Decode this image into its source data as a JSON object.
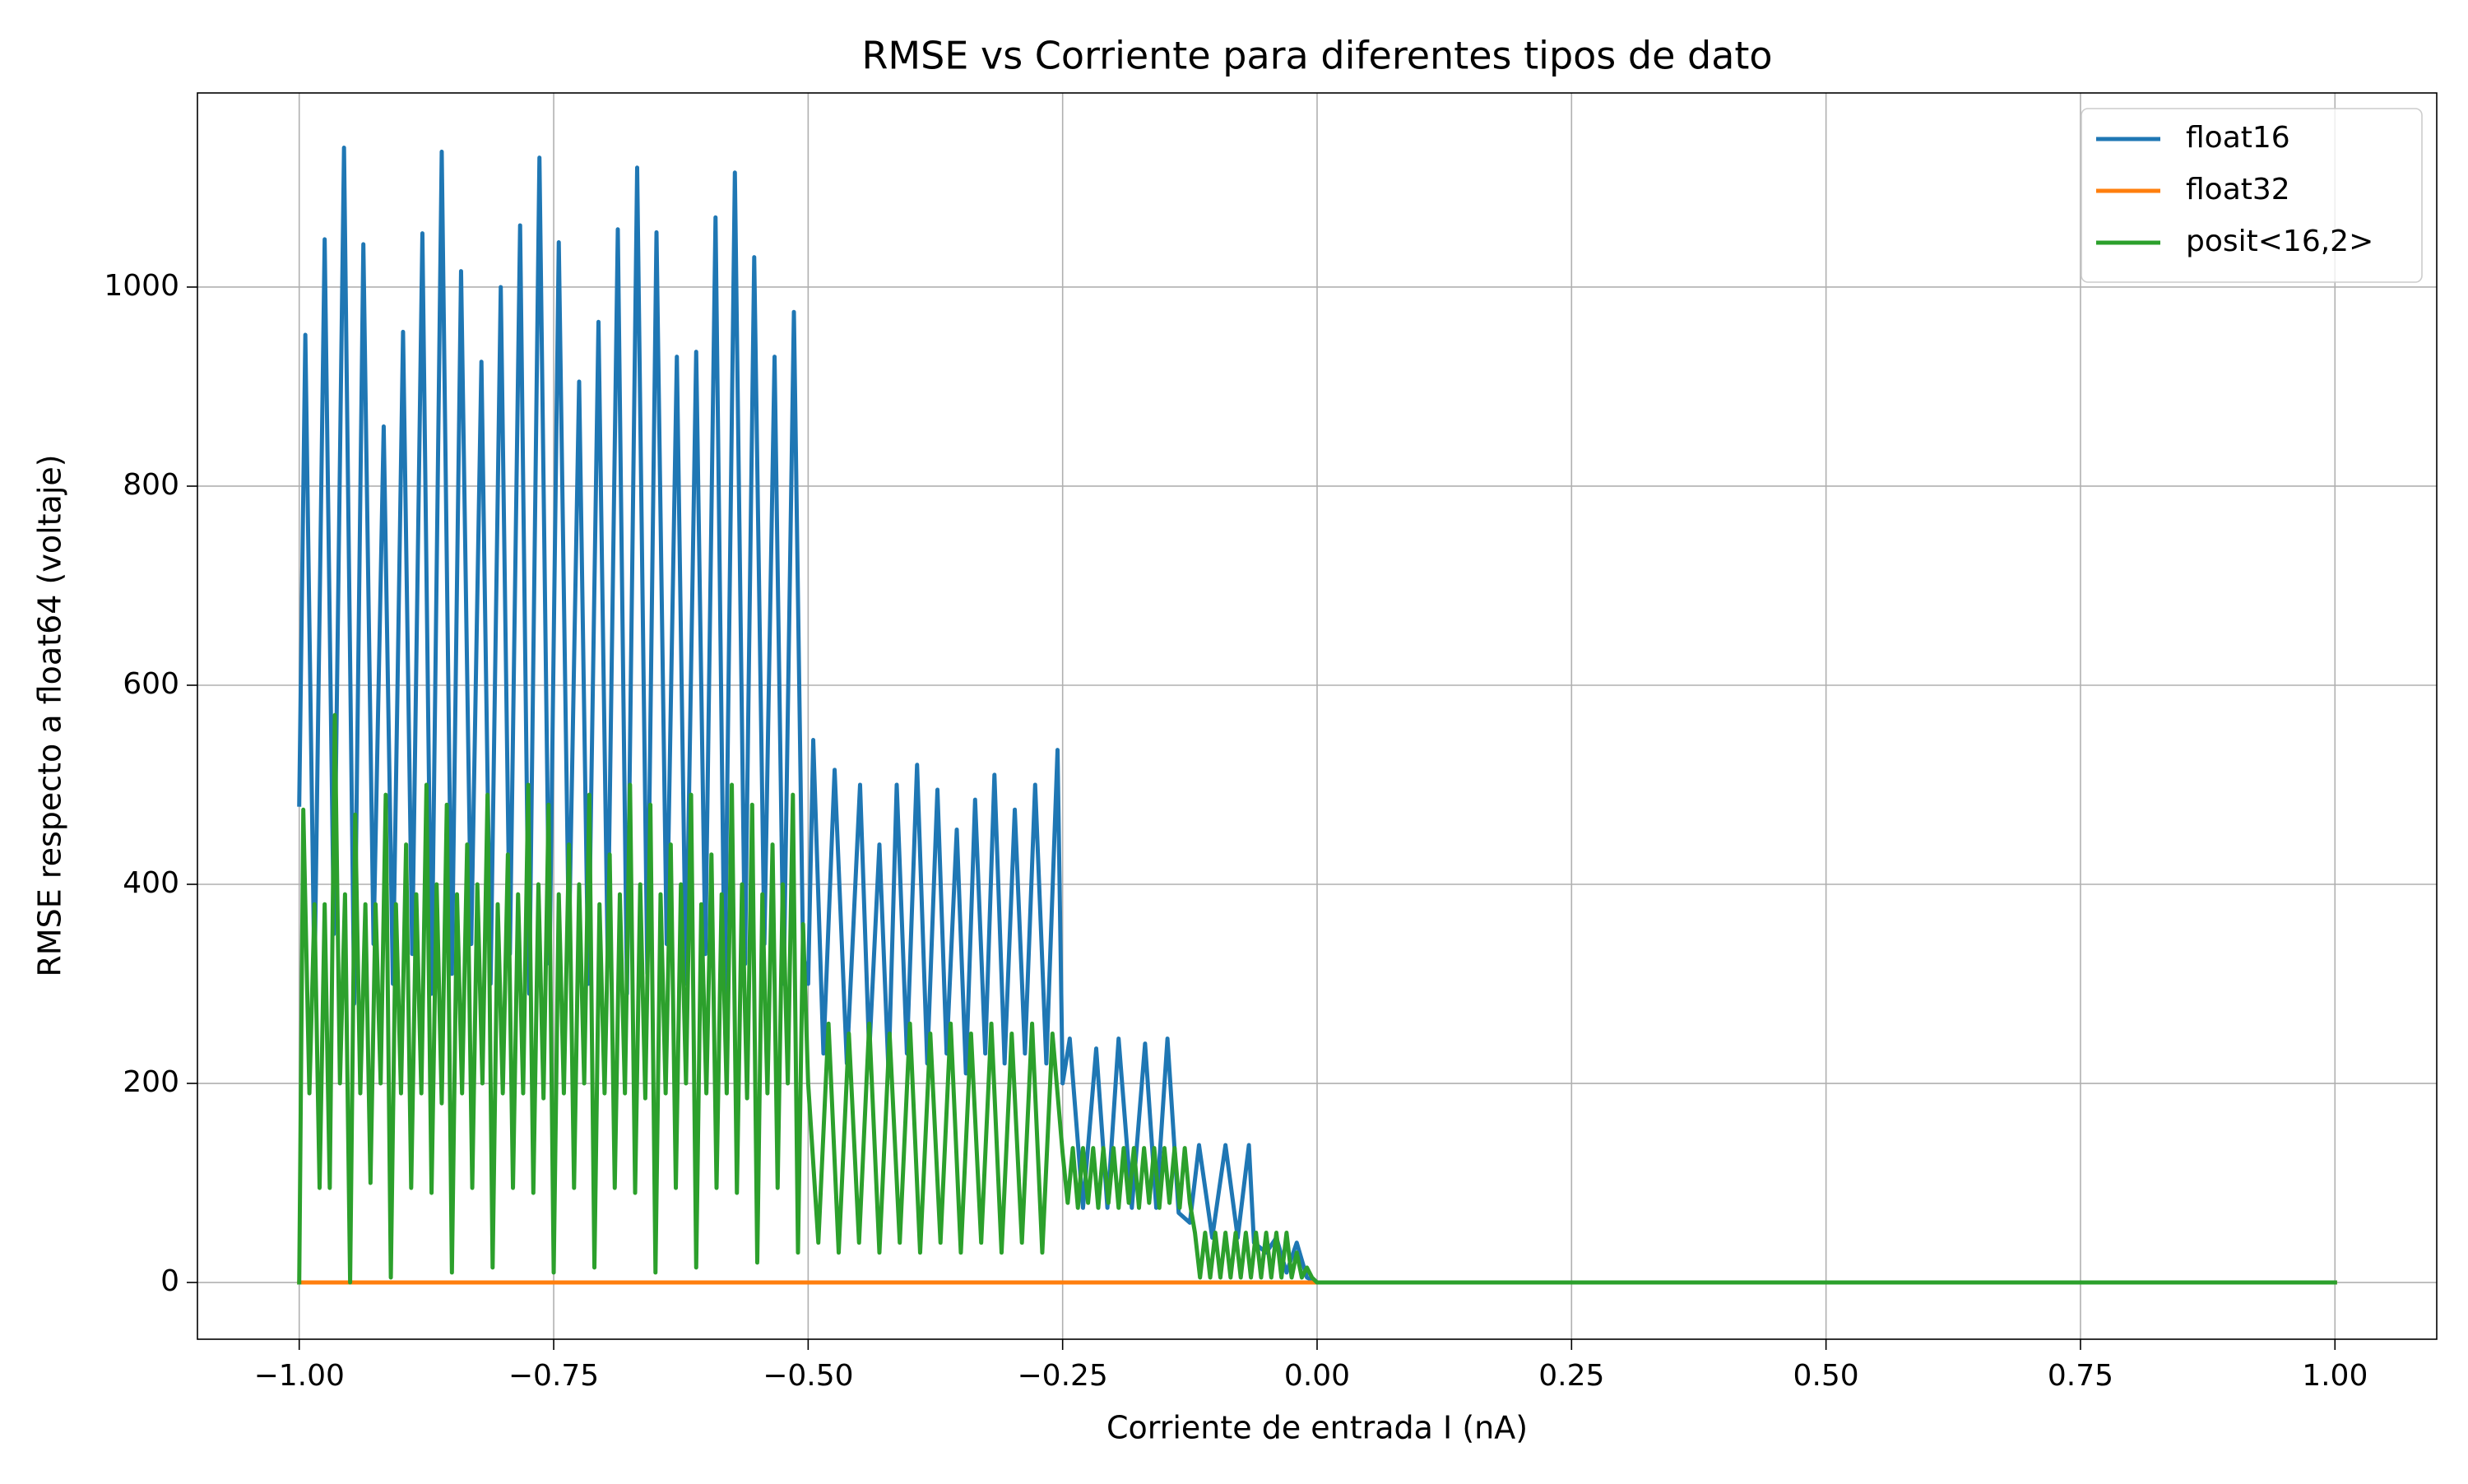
{
  "chart_data": {
    "type": "line",
    "title": "RMSE vs Corriente para diferentes tipos de dato",
    "xlabel": "Corriente de entrada I (nA)",
    "ylabel": "RMSE respecto a float64 (voltaje)",
    "xlim": [
      -1.1,
      1.1
    ],
    "ylim": [
      -57,
      1195
    ],
    "xticks": [
      {
        "value": -1,
        "label": "−1.00"
      },
      {
        "value": -0.75,
        "label": "−0.75"
      },
      {
        "value": -0.5,
        "label": "−0.50"
      },
      {
        "value": -0.25,
        "label": "−0.25"
      },
      {
        "value": 0,
        "label": "0.00"
      },
      {
        "value": 0.25,
        "label": "0.25"
      },
      {
        "value": 0.5,
        "label": "0.50"
      },
      {
        "value": 0.75,
        "label": "0.75"
      },
      {
        "value": 1,
        "label": "1.00"
      }
    ],
    "yticks": [
      0,
      200,
      400,
      600,
      800,
      1000
    ],
    "grid": true,
    "legend": "upper right",
    "series": [
      {
        "name": "float16",
        "color": "#1f77b4",
        "x": [
          -1.0,
          -0.994,
          -0.985,
          -0.975,
          -0.966,
          -0.956,
          -0.946,
          -0.937,
          -0.927,
          -0.917,
          -0.908,
          -0.898,
          -0.889,
          -0.879,
          -0.87,
          -0.86,
          -0.85,
          -0.841,
          -0.831,
          -0.821,
          -0.812,
          -0.802,
          -0.793,
          -0.783,
          -0.774,
          -0.764,
          -0.754,
          -0.745,
          -0.735,
          -0.725,
          -0.716,
          -0.706,
          -0.697,
          -0.687,
          -0.678,
          -0.668,
          -0.658,
          -0.649,
          -0.639,
          -0.629,
          -0.62,
          -0.61,
          -0.601,
          -0.591,
          -0.582,
          -0.572,
          -0.562,
          -0.553,
          -0.543,
          -0.533,
          -0.524,
          -0.514,
          -0.505,
          -0.5,
          -0.495,
          -0.485,
          -0.474,
          -0.462,
          -0.449,
          -0.44,
          -0.43,
          -0.421,
          -0.413,
          -0.403,
          -0.393,
          -0.383,
          -0.373,
          -0.364,
          -0.354,
          -0.345,
          -0.336,
          -0.326,
          -0.317,
          -0.307,
          -0.297,
          -0.287,
          -0.277,
          -0.266,
          -0.255,
          -0.25,
          -0.243,
          -0.23,
          -0.217,
          -0.206,
          -0.195,
          -0.182,
          -0.169,
          -0.158,
          -0.147,
          -0.136,
          -0.125,
          -0.116,
          -0.103,
          -0.09,
          -0.078,
          -0.067,
          -0.062,
          -0.05,
          -0.04,
          -0.03,
          -0.02,
          -0.01,
          0,
          1.0
        ],
        "values": [
          480,
          952,
          300,
          1048,
          350,
          1140,
          280,
          1043,
          340,
          860,
          300,
          955,
          330,
          1054,
          290,
          1136,
          310,
          1016,
          340,
          925,
          300,
          1000,
          330,
          1062,
          290,
          1130,
          320,
          1045,
          340,
          905,
          300,
          965,
          330,
          1058,
          290,
          1120,
          310,
          1055,
          340,
          930,
          300,
          935,
          330,
          1070,
          290,
          1115,
          320,
          1030,
          340,
          930,
          300,
          975,
          330,
          300,
          545,
          230,
          515,
          220,
          500,
          230,
          440,
          210,
          500,
          230,
          520,
          220,
          495,
          230,
          455,
          210,
          485,
          230,
          510,
          220,
          475,
          230,
          500,
          220,
          535,
          200,
          245,
          75,
          235,
          75,
          245,
          75,
          240,
          75,
          245,
          70,
          60,
          138,
          45,
          138,
          45,
          138,
          40,
          30,
          45,
          10,
          40,
          5,
          0,
          0
        ]
      },
      {
        "name": "float32",
        "color": "#ff7f0e",
        "x": [
          -1.0,
          1.0
        ],
        "values": [
          0,
          0
        ]
      },
      {
        "name": "posit<16,2>",
        "color": "#2ca02c",
        "x": [
          -1.0,
          -0.996,
          -0.99,
          -0.985,
          -0.98,
          -0.975,
          -0.97,
          -0.965,
          -0.96,
          -0.955,
          -0.95,
          -0.945,
          -0.94,
          -0.935,
          -0.93,
          -0.925,
          -0.92,
          -0.915,
          -0.91,
          -0.905,
          -0.9,
          -0.895,
          -0.89,
          -0.885,
          -0.88,
          -0.875,
          -0.87,
          -0.865,
          -0.86,
          -0.855,
          -0.85,
          -0.845,
          -0.84,
          -0.835,
          -0.83,
          -0.825,
          -0.82,
          -0.815,
          -0.81,
          -0.805,
          -0.8,
          -0.795,
          -0.79,
          -0.785,
          -0.78,
          -0.775,
          -0.77,
          -0.765,
          -0.76,
          -0.755,
          -0.75,
          -0.745,
          -0.74,
          -0.735,
          -0.73,
          -0.725,
          -0.72,
          -0.715,
          -0.71,
          -0.705,
          -0.7,
          -0.695,
          -0.69,
          -0.685,
          -0.68,
          -0.675,
          -0.67,
          -0.665,
          -0.66,
          -0.655,
          -0.65,
          -0.645,
          -0.64,
          -0.635,
          -0.63,
          -0.625,
          -0.62,
          -0.615,
          -0.61,
          -0.605,
          -0.6,
          -0.595,
          -0.59,
          -0.585,
          -0.58,
          -0.575,
          -0.57,
          -0.565,
          -0.56,
          -0.555,
          -0.55,
          -0.545,
          -0.54,
          -0.535,
          -0.53,
          -0.525,
          -0.52,
          -0.515,
          -0.51,
          -0.505,
          -0.5,
          -0.49,
          -0.48,
          -0.47,
          -0.46,
          -0.45,
          -0.44,
          -0.43,
          -0.42,
          -0.41,
          -0.4,
          -0.39,
          -0.38,
          -0.37,
          -0.36,
          -0.35,
          -0.34,
          -0.33,
          -0.32,
          -0.31,
          -0.3,
          -0.29,
          -0.28,
          -0.27,
          -0.26,
          -0.25,
          -0.245,
          -0.24,
          -0.235,
          -0.23,
          -0.225,
          -0.22,
          -0.215,
          -0.21,
          -0.205,
          -0.2,
          -0.195,
          -0.19,
          -0.185,
          -0.18,
          -0.175,
          -0.17,
          -0.165,
          -0.16,
          -0.155,
          -0.15,
          -0.145,
          -0.14,
          -0.135,
          -0.13,
          -0.125,
          -0.12,
          -0.115,
          -0.11,
          -0.105,
          -0.1,
          -0.095,
          -0.09,
          -0.085,
          -0.08,
          -0.075,
          -0.07,
          -0.065,
          -0.06,
          -0.055,
          -0.05,
          -0.045,
          -0.04,
          -0.035,
          -0.03,
          -0.025,
          -0.02,
          -0.015,
          -0.01,
          -0.005,
          0,
          1.0
        ],
        "values": [
          0,
          475,
          190,
          380,
          95,
          380,
          95,
          570,
          200,
          390,
          0,
          470,
          190,
          380,
          100,
          380,
          200,
          490,
          5,
          380,
          190,
          440,
          95,
          390,
          190,
          500,
          90,
          400,
          180,
          480,
          10,
          390,
          190,
          440,
          95,
          400,
          200,
          490,
          15,
          380,
          190,
          430,
          95,
          390,
          190,
          500,
          90,
          400,
          185,
          480,
          10,
          390,
          190,
          440,
          95,
          400,
          200,
          490,
          15,
          380,
          190,
          430,
          95,
          390,
          190,
          500,
          90,
          400,
          185,
          480,
          10,
          390,
          190,
          440,
          95,
          400,
          200,
          490,
          15,
          380,
          190,
          430,
          95,
          390,
          190,
          500,
          90,
          400,
          185,
          480,
          20,
          390,
          190,
          440,
          95,
          400,
          200,
          490,
          30,
          360,
          200,
          40,
          260,
          30,
          250,
          40,
          260,
          30,
          250,
          40,
          260,
          30,
          250,
          40,
          260,
          30,
          250,
          40,
          260,
          30,
          250,
          40,
          260,
          30,
          250,
          130,
          80,
          135,
          75,
          135,
          80,
          135,
          75,
          135,
          80,
          135,
          75,
          135,
          80,
          135,
          75,
          135,
          80,
          135,
          75,
          135,
          80,
          135,
          75,
          135,
          80,
          50,
          5,
          50,
          5,
          50,
          5,
          50,
          5,
          50,
          5,
          50,
          5,
          50,
          5,
          50,
          5,
          50,
          5,
          50,
          5,
          30,
          5,
          15,
          5,
          0,
          0
        ]
      }
    ]
  }
}
